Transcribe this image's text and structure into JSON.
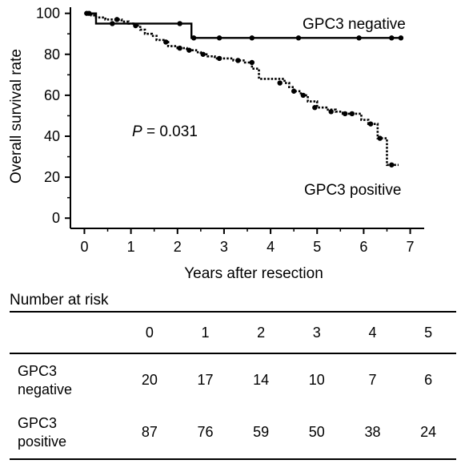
{
  "chart_data": {
    "type": "line",
    "subtype": "kaplan-meier survival curve",
    "xlabel": "Years after resection",
    "ylabel": "Overall survival rate",
    "xlim": [
      -0.3,
      7.3
    ],
    "ylim": [
      -5,
      103
    ],
    "xticks": [
      "0",
      "1",
      "2",
      "3",
      "4",
      "5",
      "6",
      "7"
    ],
    "yticks": [
      "0",
      "20",
      "40",
      "60",
      "80",
      "100"
    ],
    "annotation": {
      "italic": "P",
      "rest": " = 0.031"
    },
    "grid": false,
    "series": [
      {
        "name": "GPC3 negative",
        "line_style": "solid",
        "step_x": [
          0,
          0.25,
          2.3,
          6.85
        ],
        "step_y": [
          100,
          95,
          88,
          88
        ],
        "censor_x": [
          0.05,
          0.1,
          0.6,
          2.05,
          2.35,
          2.9,
          3.6,
          4.6,
          5.9,
          6.6,
          6.8
        ],
        "censor_y": [
          100,
          100,
          95,
          95,
          88,
          88,
          88,
          88,
          88,
          88,
          88
        ]
      },
      {
        "name": "GPC3 positive",
        "line_style": "dotted",
        "step_x": [
          0,
          0.15,
          0.25,
          0.45,
          0.6,
          0.8,
          0.95,
          1.05,
          1.2,
          1.3,
          1.45,
          1.55,
          1.7,
          1.8,
          2.0,
          2.2,
          2.4,
          2.5,
          2.65,
          2.8,
          2.95,
          3.2,
          3.45,
          3.6,
          3.75,
          4.05,
          4.3,
          4.4,
          4.5,
          4.65,
          4.8,
          5.0,
          5.2,
          5.4,
          5.55,
          5.95,
          6.1,
          6.3,
          6.5,
          6.75
        ],
        "step_y": [
          100,
          99,
          98,
          97,
          97,
          96,
          95,
          94,
          92,
          90,
          89,
          87,
          86,
          84,
          83,
          82,
          81,
          80,
          79,
          78,
          78,
          77,
          76,
          73,
          68,
          68,
          66,
          64,
          62,
          60,
          57,
          54,
          53,
          52,
          51,
          48,
          46,
          39,
          26,
          26
        ],
        "censor_x": [
          0.7,
          1.1,
          1.75,
          2.05,
          2.25,
          2.55,
          2.9,
          3.3,
          3.6,
          4.2,
          4.5,
          4.7,
          4.95,
          5.3,
          5.6,
          5.75,
          6.15,
          6.35,
          6.6
        ],
        "censor_y": [
          97,
          94,
          86,
          83,
          82,
          80,
          78,
          77,
          76,
          66,
          62,
          60,
          54,
          52,
          51,
          51,
          46,
          39,
          26
        ]
      }
    ]
  },
  "risk_table": {
    "title": "Number at risk",
    "years": [
      "0",
      "1",
      "2",
      "3",
      "4",
      "5"
    ],
    "rows": [
      {
        "label_line1": "GPC3",
        "label_line2": "negative",
        "counts": [
          "20",
          "17",
          "14",
          "10",
          "7",
          "6"
        ]
      },
      {
        "label_line1": "GPC3",
        "label_line2": "positive",
        "counts": [
          "87",
          "76",
          "59",
          "50",
          "38",
          "24"
        ]
      }
    ]
  }
}
